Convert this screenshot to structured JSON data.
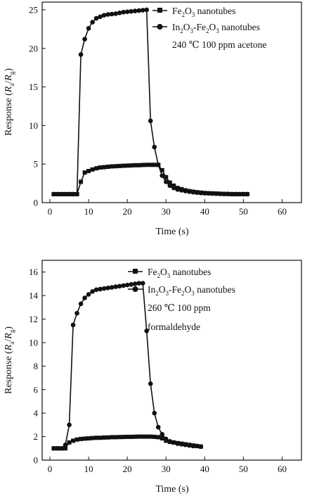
{
  "chart_data": [
    {
      "type": "line",
      "xlabel": "Time (s)",
      "ylabel": "Response (R_a/R_g)",
      "ylabel_main": "Response (",
      "ylabel_r1": "R",
      "ylabel_sub1": "a",
      "ylabel_slash": "/",
      "ylabel_r2": "R",
      "ylabel_sub2": "g",
      "ylabel_close": ")",
      "xlim": [
        -2,
        65
      ],
      "ylim": [
        0,
        26
      ],
      "xticks": [
        0,
        10,
        20,
        30,
        40,
        50,
        60
      ],
      "yticks": [
        0,
        5,
        10,
        15,
        20,
        25
      ],
      "annotation": [
        "240 ℃ 100 ppm acetone"
      ],
      "series": [
        {
          "name": "Fe2O3 nanotubes",
          "label_parts": [
            "Fe",
            "2",
            "O",
            "3",
            " nanotubes"
          ],
          "marker": "square",
          "x": [
            1,
            2,
            3,
            4,
            5,
            6,
            7,
            8,
            9,
            10,
            11,
            12,
            13,
            14,
            15,
            16,
            17,
            18,
            19,
            20,
            21,
            22,
            23,
            24,
            25,
            26,
            27,
            28,
            29,
            30,
            31,
            32,
            33,
            34,
            35,
            36,
            37,
            38,
            39,
            40,
            41,
            42,
            43,
            44,
            45,
            46,
            47,
            48,
            49,
            50,
            51
          ],
          "y": [
            1.1,
            1.1,
            1.1,
            1.1,
            1.1,
            1.1,
            1.1,
            2.7,
            3.9,
            4.1,
            4.3,
            4.45,
            4.55,
            4.6,
            4.65,
            4.7,
            4.72,
            4.75,
            4.78,
            4.8,
            4.82,
            4.85,
            4.85,
            4.88,
            4.9,
            4.9,
            4.9,
            4.9,
            4.2,
            3.3,
            2.6,
            2.2,
            1.9,
            1.75,
            1.6,
            1.5,
            1.42,
            1.35,
            1.3,
            1.25,
            1.22,
            1.2,
            1.18,
            1.15,
            1.13,
            1.12,
            1.1,
            1.1,
            1.1,
            1.1,
            1.1
          ]
        },
        {
          "name": "In2O3-Fe2O3 nanotubes",
          "label_parts": [
            "In",
            "2",
            "O",
            "3",
            "-Fe",
            "2",
            "O",
            "3",
            " nanotubes"
          ],
          "marker": "circle",
          "x": [
            1,
            2,
            3,
            4,
            5,
            6,
            7,
            8,
            9,
            10,
            11,
            12,
            13,
            14,
            15,
            16,
            17,
            18,
            19,
            20,
            21,
            22,
            23,
            24,
            25,
            26,
            27,
            28,
            29,
            30,
            31,
            32,
            33,
            34,
            35,
            36,
            37,
            38,
            39,
            40,
            41,
            42,
            43,
            44,
            45,
            46,
            47,
            48,
            49,
            50,
            51
          ],
          "y": [
            1.1,
            1.1,
            1.1,
            1.1,
            1.1,
            1.1,
            1.1,
            19.2,
            21.2,
            22.6,
            23.4,
            23.9,
            24.1,
            24.3,
            24.4,
            24.45,
            24.5,
            24.6,
            24.7,
            24.75,
            24.8,
            24.85,
            24.9,
            24.95,
            25.0,
            10.6,
            7.2,
            4.9,
            3.5,
            2.7,
            2.2,
            1.9,
            1.7,
            1.6,
            1.5,
            1.42,
            1.35,
            1.3,
            1.25,
            1.22,
            1.2,
            1.18,
            1.16,
            1.15,
            1.13,
            1.12,
            1.1,
            1.1,
            1.1,
            1.1,
            1.1
          ]
        }
      ]
    },
    {
      "type": "line",
      "xlabel": "Time (s)",
      "ylabel": "Response (R_a/R_g)",
      "ylabel_main": "Response (",
      "ylabel_r1": "R",
      "ylabel_sub1": "a",
      "ylabel_slash": "/",
      "ylabel_r2": "R",
      "ylabel_sub2": "g",
      "ylabel_close": ")",
      "xlim": [
        -2,
        65
      ],
      "ylim": [
        0,
        17
      ],
      "xticks": [
        0,
        10,
        20,
        30,
        40,
        50,
        60
      ],
      "yticks": [
        0,
        2,
        4,
        6,
        8,
        10,
        12,
        14,
        16
      ],
      "annotation": [
        "260 ℃ 100 ppm",
        "formaldehyde"
      ],
      "series": [
        {
          "name": "Fe2O3 nanotubes",
          "label_parts": [
            "Fe",
            "2",
            "O",
            "3",
            " nanotubes"
          ],
          "marker": "square",
          "x": [
            1,
            2,
            3,
            4,
            5,
            6,
            7,
            8,
            9,
            10,
            11,
            12,
            13,
            14,
            15,
            16,
            17,
            18,
            19,
            20,
            21,
            22,
            23,
            24,
            25,
            26,
            27,
            28,
            29,
            30,
            31,
            32,
            33,
            34,
            35,
            36,
            37,
            38,
            39
          ],
          "y": [
            1.0,
            1.0,
            1.0,
            1.0,
            1.5,
            1.65,
            1.75,
            1.8,
            1.83,
            1.85,
            1.88,
            1.9,
            1.9,
            1.92,
            1.93,
            1.95,
            1.95,
            1.96,
            1.97,
            1.98,
            1.98,
            1.99,
            2.0,
            2.0,
            2.0,
            2.0,
            1.98,
            1.95,
            1.85,
            1.65,
            1.55,
            1.5,
            1.45,
            1.4,
            1.35,
            1.3,
            1.25,
            1.2,
            1.15
          ]
        },
        {
          "name": "In2O3-Fe2O3 nanotubes",
          "label_parts": [
            "In",
            "2",
            "O",
            "3",
            "-Fe",
            "2",
            "O",
            "3",
            " nanotubes"
          ],
          "marker": "circle",
          "x": [
            1,
            2,
            3,
            4,
            5,
            6,
            7,
            8,
            9,
            10,
            11,
            12,
            13,
            14,
            15,
            16,
            17,
            18,
            19,
            20,
            21,
            22,
            23,
            24,
            25,
            26,
            27,
            28,
            29,
            30,
            31,
            32,
            33,
            34,
            35,
            36,
            37,
            38,
            39
          ],
          "y": [
            1.0,
            1.0,
            1.0,
            1.3,
            3.0,
            11.5,
            12.5,
            13.3,
            13.8,
            14.1,
            14.35,
            14.5,
            14.55,
            14.6,
            14.65,
            14.7,
            14.75,
            14.8,
            14.85,
            14.9,
            14.95,
            15.0,
            15.05,
            15.05,
            11.0,
            6.5,
            4.0,
            2.8,
            2.2,
            1.8,
            1.6,
            1.5,
            1.4,
            1.35,
            1.3,
            1.25,
            1.2,
            1.2,
            1.15
          ]
        }
      ]
    }
  ]
}
